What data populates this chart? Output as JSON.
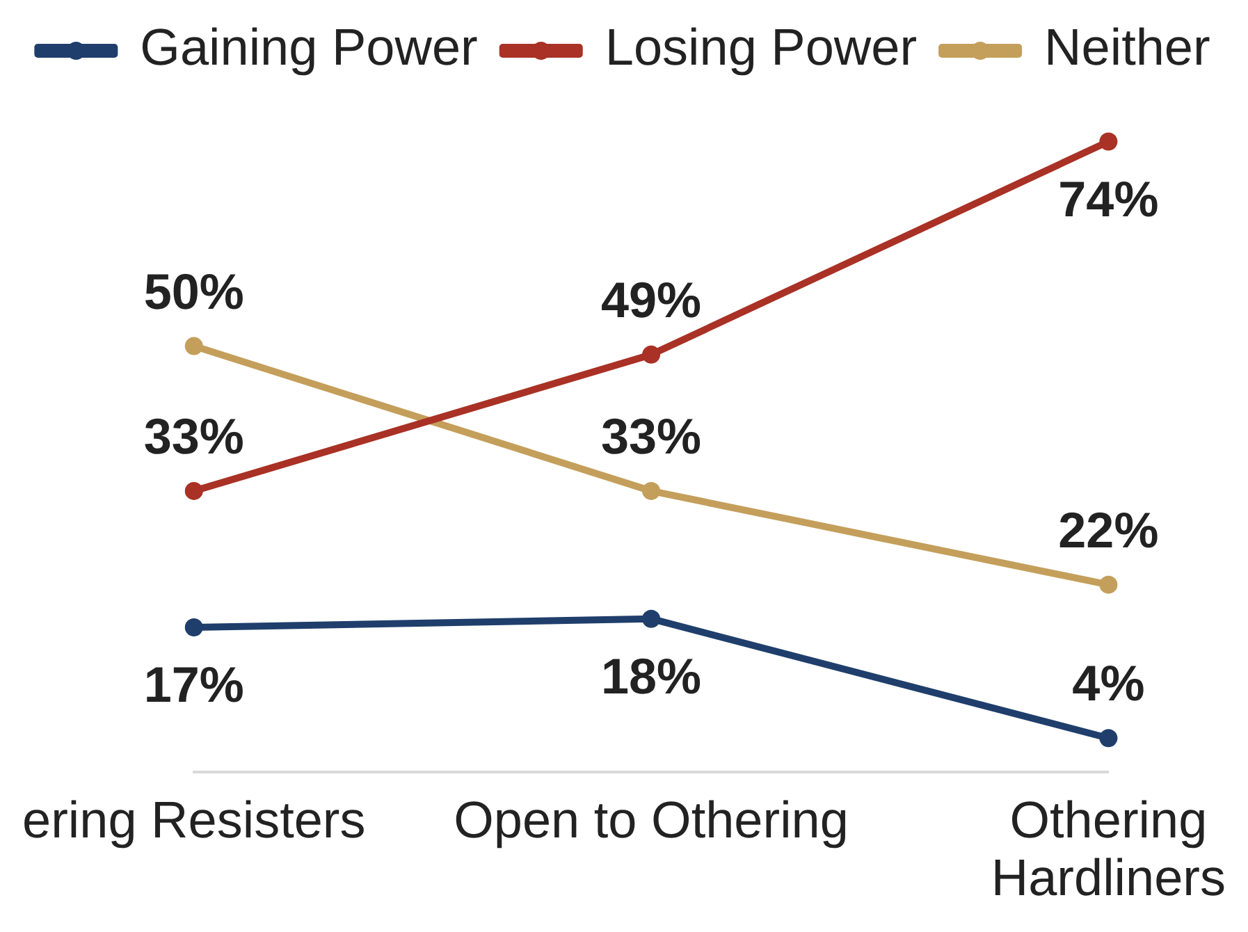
{
  "chart_data": {
    "type": "line",
    "categories": [
      "ering Resisters",
      "Open to Othering",
      "Othering Hardliners"
    ],
    "series": [
      {
        "name": "Gaining Power",
        "color": "#1f3e6b",
        "values": [
          17,
          18,
          4
        ],
        "value_labels": [
          "17%",
          "18%",
          "4%"
        ]
      },
      {
        "name": "Losing Power",
        "color": "#a93125",
        "values": [
          33,
          49,
          74
        ],
        "value_labels": [
          "33%",
          "49%",
          "74%"
        ]
      },
      {
        "name": "Neither",
        "color": "#c49f5b",
        "values": [
          50,
          33,
          22
        ],
        "value_labels": [
          "50%",
          "33%",
          "22%"
        ]
      }
    ],
    "tick_labels": "x",
    "grid": false,
    "legend": "top",
    "marker": "circle",
    "line_style": "solid"
  }
}
